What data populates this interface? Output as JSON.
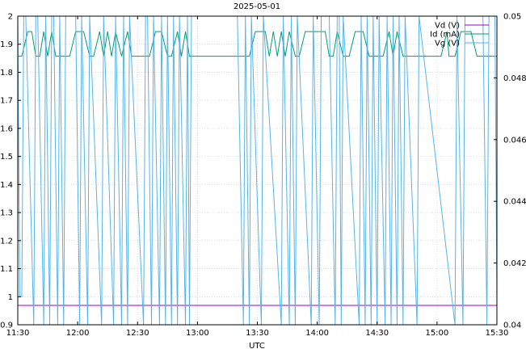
{
  "chart_data": {
    "type": "line",
    "title": "2025-05-01",
    "xlabel": "UTC",
    "x_ticks": [
      "11:30",
      "12:00",
      "12:30",
      "13:00",
      "13:30",
      "14:00",
      "14:30",
      "15:00",
      "15:30"
    ],
    "x_range_minutes": [
      690,
      930
    ],
    "y_left": {
      "range": [
        0.9,
        2.0
      ],
      "ticks": [
        "0.9",
        "1",
        "1.1",
        "1.2",
        "1.3",
        "1.4",
        "1.5",
        "1.6",
        "1.7",
        "1.8",
        "1.9",
        "2"
      ]
    },
    "y_right": {
      "range": [
        0.04,
        0.05
      ],
      "ticks": [
        "0.04",
        "0.042",
        "0.044",
        "0.046",
        "0.048",
        "0.05"
      ]
    },
    "grid": true,
    "legend_position": "top-right",
    "series": [
      {
        "name": "Vd (V)",
        "axis": "left",
        "color": "#9400d3",
        "points": [
          [
            690,
            0.969
          ],
          [
            930,
            0.969
          ]
        ]
      },
      {
        "name": "Id (mA)",
        "axis": "right",
        "color": "#009e73",
        "points": [
          [
            690,
            0.0487
          ],
          [
            692,
            0.0487
          ],
          [
            695,
            0.0495
          ],
          [
            697,
            0.0495
          ],
          [
            699,
            0.0487
          ],
          [
            701,
            0.0487
          ],
          [
            703,
            0.0495
          ],
          [
            705,
            0.0487
          ],
          [
            707,
            0.0495
          ],
          [
            709,
            0.0487
          ],
          [
            716,
            0.0487
          ],
          [
            719,
            0.0495
          ],
          [
            723,
            0.0495
          ],
          [
            726,
            0.0487
          ],
          [
            728,
            0.0487
          ],
          [
            731,
            0.0495
          ],
          [
            733,
            0.0487
          ],
          [
            735,
            0.0495
          ],
          [
            737,
            0.0487
          ],
          [
            739,
            0.0495
          ],
          [
            742,
            0.0487
          ],
          [
            745,
            0.0495
          ],
          [
            747,
            0.0487
          ],
          [
            748,
            0.0487
          ],
          [
            756,
            0.0487
          ],
          [
            759,
            0.0495
          ],
          [
            762,
            0.0495
          ],
          [
            765,
            0.0487
          ],
          [
            767,
            0.0487
          ],
          [
            770,
            0.0495
          ],
          [
            772,
            0.0487
          ],
          [
            774,
            0.0495
          ],
          [
            776,
            0.0487
          ],
          [
            776,
            0.0487
          ],
          [
            806,
            0.0487
          ],
          [
            809,
            0.0495
          ],
          [
            814,
            0.0495
          ],
          [
            816,
            0.0487
          ],
          [
            818,
            0.0495
          ],
          [
            820,
            0.0487
          ],
          [
            822,
            0.0495
          ],
          [
            824,
            0.0487
          ],
          [
            826,
            0.0495
          ],
          [
            829,
            0.0487
          ],
          [
            831,
            0.0487
          ],
          [
            834,
            0.0495
          ],
          [
            839,
            0.0495
          ],
          [
            842,
            0.0495
          ],
          [
            844,
            0.0495
          ],
          [
            846,
            0.0487
          ],
          [
            848,
            0.0487
          ],
          [
            850,
            0.0495
          ],
          [
            853,
            0.0487
          ],
          [
            856,
            0.0487
          ],
          [
            859,
            0.0495
          ],
          [
            863,
            0.0495
          ],
          [
            866,
            0.0487
          ],
          [
            869,
            0.0487
          ],
          [
            873,
            0.0487
          ],
          [
            876,
            0.0495
          ],
          [
            878,
            0.0487
          ],
          [
            880,
            0.0495
          ],
          [
            883,
            0.0487
          ],
          [
            902,
            0.0487
          ],
          [
            905,
            0.0495
          ],
          [
            906,
            0.0487
          ],
          [
            909,
            0.0487
          ],
          [
            912,
            0.0495
          ],
          [
            917,
            0.0495
          ],
          [
            920,
            0.0487
          ],
          [
            929,
            0.0487
          ],
          [
            930,
            0.0487
          ]
        ]
      },
      {
        "name": "Vg (V)",
        "axis": "left",
        "color": "#56b4e9",
        "points": [
          [
            690,
            2.0
          ],
          [
            691,
            1.0
          ],
          [
            692,
            1.0
          ],
          [
            693,
            2.0
          ],
          [
            694,
            2.0
          ],
          [
            698,
            0.9
          ],
          [
            699,
            2.0
          ],
          [
            700,
            2.0
          ],
          [
            703,
            0.9
          ],
          [
            704,
            2.0
          ],
          [
            706,
            0.9
          ],
          [
            707,
            2.0
          ],
          [
            708,
            2.0
          ],
          [
            710,
            0.9
          ],
          [
            711,
            2.0
          ],
          [
            713,
            0.9
          ],
          [
            714,
            2.0
          ],
          [
            719,
            2.0
          ],
          [
            721,
            0.9
          ],
          [
            722,
            2.0
          ],
          [
            725,
            0.9
          ],
          [
            726,
            2.0
          ],
          [
            732,
            0.9
          ],
          [
            733,
            2.0
          ],
          [
            738,
            0.9
          ],
          [
            739,
            2.0
          ],
          [
            742,
            0.9
          ],
          [
            743,
            2.0
          ],
          [
            745,
            0.9
          ],
          [
            746,
            2.0
          ],
          [
            753,
            0.9
          ],
          [
            754,
            2.0
          ],
          [
            755,
            2.0
          ],
          [
            757,
            0.9
          ],
          [
            758,
            2.0
          ],
          [
            761,
            0.9
          ],
          [
            762,
            2.0
          ],
          [
            764,
            0.9
          ],
          [
            765,
            2.0
          ],
          [
            767,
            0.9
          ],
          [
            768,
            2.0
          ],
          [
            770,
            0.9
          ],
          [
            771,
            2.0
          ],
          [
            774,
            0.9
          ],
          [
            775,
            2.0
          ],
          [
            776,
            0.9
          ],
          [
            777,
            2.0
          ],
          [
            800,
            2.0
          ],
          [
            803,
            0.9
          ],
          [
            804,
            2.0
          ],
          [
            806,
            0.9
          ],
          [
            807,
            2.0
          ],
          [
            812,
            0.9
          ],
          [
            813,
            2.0
          ],
          [
            822,
            0.9
          ],
          [
            823,
            2.0
          ],
          [
            826,
            0.9
          ],
          [
            827,
            2.0
          ],
          [
            829,
            0.9
          ],
          [
            830,
            2.0
          ],
          [
            837,
            0.9
          ],
          [
            838,
            2.0
          ],
          [
            841,
            0.9
          ],
          [
            842,
            2.0
          ],
          [
            846,
            2.0
          ],
          [
            849,
            0.9
          ],
          [
            850,
            2.0
          ],
          [
            851,
            2.0
          ],
          [
            852,
            0.9
          ],
          [
            853,
            2.0
          ],
          [
            861,
            0.9
          ],
          [
            862,
            2.0
          ],
          [
            864,
            0.9
          ],
          [
            865,
            2.0
          ],
          [
            867,
            0.9
          ],
          [
            868,
            2.0
          ],
          [
            870,
            0.9
          ],
          [
            871,
            2.0
          ],
          [
            874,
            0.9
          ],
          [
            875,
            2.0
          ],
          [
            877,
            0.9
          ],
          [
            878,
            2.0
          ],
          [
            880,
            0.9
          ],
          [
            881,
            2.0
          ],
          [
            883,
            0.9
          ],
          [
            884,
            2.0
          ],
          [
            890,
            0.9
          ],
          [
            891,
            2.0
          ],
          [
            909,
            0.9
          ],
          [
            910,
            2.0
          ],
          [
            913,
            0.9
          ],
          [
            914,
            2.0
          ],
          [
            922,
            2.0
          ],
          [
            923,
            2.0
          ],
          [
            925,
            0.9
          ],
          [
            926,
            2.0
          ],
          [
            929,
            2.0
          ],
          [
            930,
            1.0
          ]
        ]
      }
    ]
  }
}
